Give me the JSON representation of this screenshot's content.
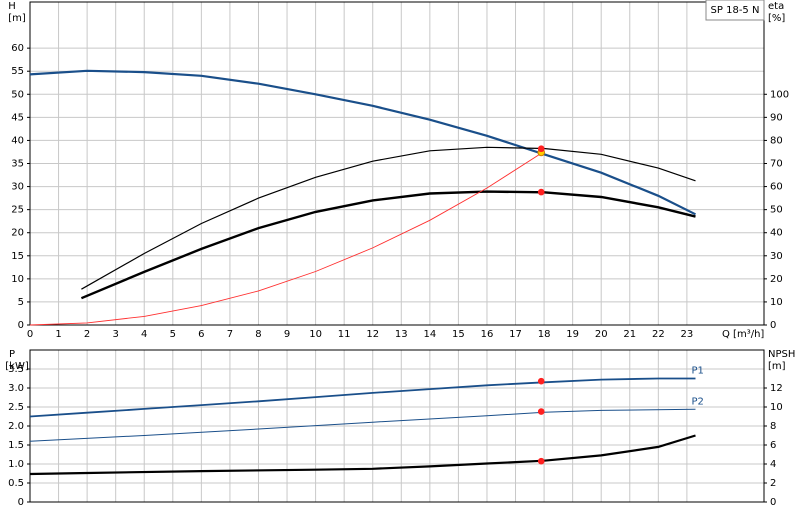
{
  "chart_data": [
    {
      "type": "line",
      "title": "SP 18-5 N",
      "y_label": "H",
      "y_unit": "[m]",
      "y2_label": "eta",
      "y2_unit": "[%]",
      "x_label": "Q [m³/h]",
      "xlim": [
        0,
        25.7
      ],
      "xticks": [
        0,
        1,
        2,
        3,
        4,
        5,
        6,
        7,
        8,
        9,
        10,
        11,
        12,
        13,
        14,
        15,
        16,
        17,
        18,
        19,
        20,
        21,
        22,
        23
      ],
      "ylim": [
        0,
        70
      ],
      "yticks": [
        0,
        5,
        10,
        15,
        20,
        25,
        30,
        35,
        40,
        45,
        50,
        55,
        60
      ],
      "y2lim": [
        0,
        140
      ],
      "y2ticks": [
        0,
        10,
        20,
        30,
        40,
        50,
        60,
        70,
        80,
        90,
        100
      ],
      "grid": true,
      "xtick_labels": true,
      "series": [
        {
          "color": "#1a4f8a",
          "width": 2.2,
          "x": [
            0,
            2,
            4,
            6,
            8,
            10,
            12,
            14,
            16,
            18,
            20,
            22,
            23.3
          ],
          "values": [
            54.3,
            55.1,
            54.8,
            54.0,
            52.3,
            50.0,
            47.5,
            44.5,
            41.0,
            37.0,
            33.0,
            28.0,
            24.0
          ]
        },
        {
          "color": "#000000",
          "width": 1.2,
          "axis": "y2",
          "x": [
            1.8,
            4,
            6,
            8,
            10,
            12,
            14,
            16,
            18,
            20,
            22,
            23.3
          ],
          "values": [
            15.5,
            31,
            44,
            55,
            64,
            71,
            75.5,
            77,
            76.5,
            74,
            68,
            62.5
          ]
        },
        {
          "color": "#000000",
          "width": 2.4,
          "axis": "y2",
          "x": [
            1.8,
            4,
            6,
            8,
            10,
            12,
            14,
            16,
            18,
            20,
            22,
            23.3
          ],
          "values": [
            11.6,
            23,
            33,
            42,
            49,
            54,
            57,
            57.8,
            57.5,
            55.5,
            51,
            47
          ]
        },
        {
          "color": "#ff3030",
          "width": 0.9,
          "x": [
            0,
            2,
            4,
            6,
            8,
            10,
            12,
            14,
            16,
            18
          ],
          "values": [
            0,
            0.46,
            1.86,
            4.2,
            7.4,
            11.6,
            16.7,
            22.7,
            29.7,
            37.6
          ]
        }
      ],
      "points": [
        {
          "x": 17.9,
          "y": 37.4,
          "color": "#ffcc00"
        },
        {
          "x": 17.9,
          "y": 38.2,
          "color": "#ff2020"
        },
        {
          "x": 17.9,
          "y": 57.6,
          "axis": "y2",
          "color": "#ff2020"
        }
      ]
    },
    {
      "type": "line",
      "y_label": "P",
      "y_unit": "[kW]",
      "y2_label": "NPSH",
      "y2_unit": "[m]",
      "xlim": [
        0,
        25.7
      ],
      "xticks": [
        0,
        1,
        2,
        3,
        4,
        5,
        6,
        7,
        8,
        9,
        10,
        11,
        12,
        13,
        14,
        15,
        16,
        17,
        18,
        19,
        20,
        21,
        22,
        23
      ],
      "ylim": [
        0,
        4
      ],
      "yticks": [
        0,
        0.5,
        {
          "value": 1,
          "label": "1.0"
        },
        1.5,
        {
          "value": 2,
          "label": "2.0"
        },
        2.5,
        {
          "value": 3,
          "label": "3.0"
        },
        3.5
      ],
      "y2lim": [
        0,
        16
      ],
      "y2ticks": [
        0,
        2,
        4,
        6,
        8,
        10,
        12
      ],
      "grid": true,
      "xtick_labels": false,
      "series": [
        {
          "name": "P1",
          "color": "#1a4f8a",
          "width": 1.8,
          "x": [
            0,
            2,
            4,
            6,
            8,
            10,
            12,
            14,
            16,
            18,
            20,
            22,
            23.3
          ],
          "values": [
            2.25,
            2.35,
            2.45,
            2.55,
            2.65,
            2.76,
            2.87,
            2.97,
            3.07,
            3.15,
            3.22,
            3.25,
            3.25
          ]
        },
        {
          "name": "P2",
          "color": "#1a4f8a",
          "width": 1.0,
          "x": [
            0,
            4,
            8,
            12,
            16,
            18,
            20,
            23.3
          ],
          "values": [
            1.6,
            1.75,
            1.92,
            2.1,
            2.27,
            2.36,
            2.41,
            2.44
          ]
        },
        {
          "color": "#000000",
          "width": 2.2,
          "axis": "y2",
          "x": [
            0,
            2,
            6,
            10,
            12,
            14,
            16,
            18,
            20,
            22,
            23.3
          ],
          "values": [
            2.95,
            3.05,
            3.25,
            3.4,
            3.5,
            3.75,
            4.05,
            4.35,
            4.9,
            5.8,
            7.0
          ]
        }
      ],
      "points": [
        {
          "x": 17.9,
          "y": 3.18,
          "color": "#ff2020"
        },
        {
          "x": 17.9,
          "y": 2.38,
          "color": "#ff2020"
        },
        {
          "x": 17.9,
          "y": 4.3,
          "axis": "y2",
          "color": "#ff2020"
        }
      ]
    }
  ]
}
